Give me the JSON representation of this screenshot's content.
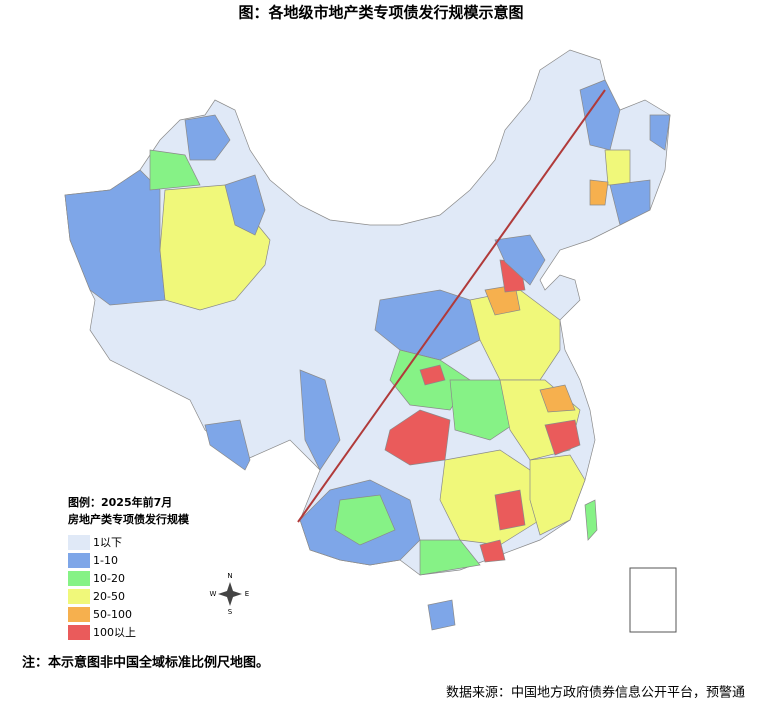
{
  "header": {
    "title": "图：各地级市地产类专项债发行规模示意图"
  },
  "legend": {
    "title_lines": [
      "图例：2025年前7月",
      "房地产类专项债发行规模"
    ],
    "items": [
      {
        "label": "1以下",
        "color": "#e0e9f7"
      },
      {
        "label": "1-10",
        "color": "#7ea6e8"
      },
      {
        "label": "10-20",
        "color": "#86f286"
      },
      {
        "label": "20-50",
        "color": "#f0f87a"
      },
      {
        "label": "50-100",
        "color": "#f6b04e"
      },
      {
        "label": "100以上",
        "color": "#ea5b5b"
      }
    ]
  },
  "compass": {
    "north": "N",
    "south": "S",
    "west": "W",
    "east": "E"
  },
  "note": "注：本示意图非中国全域标准比例尺地图。",
  "source": "数据来源：中国地方政府债券信息公开平台，预警通"
}
